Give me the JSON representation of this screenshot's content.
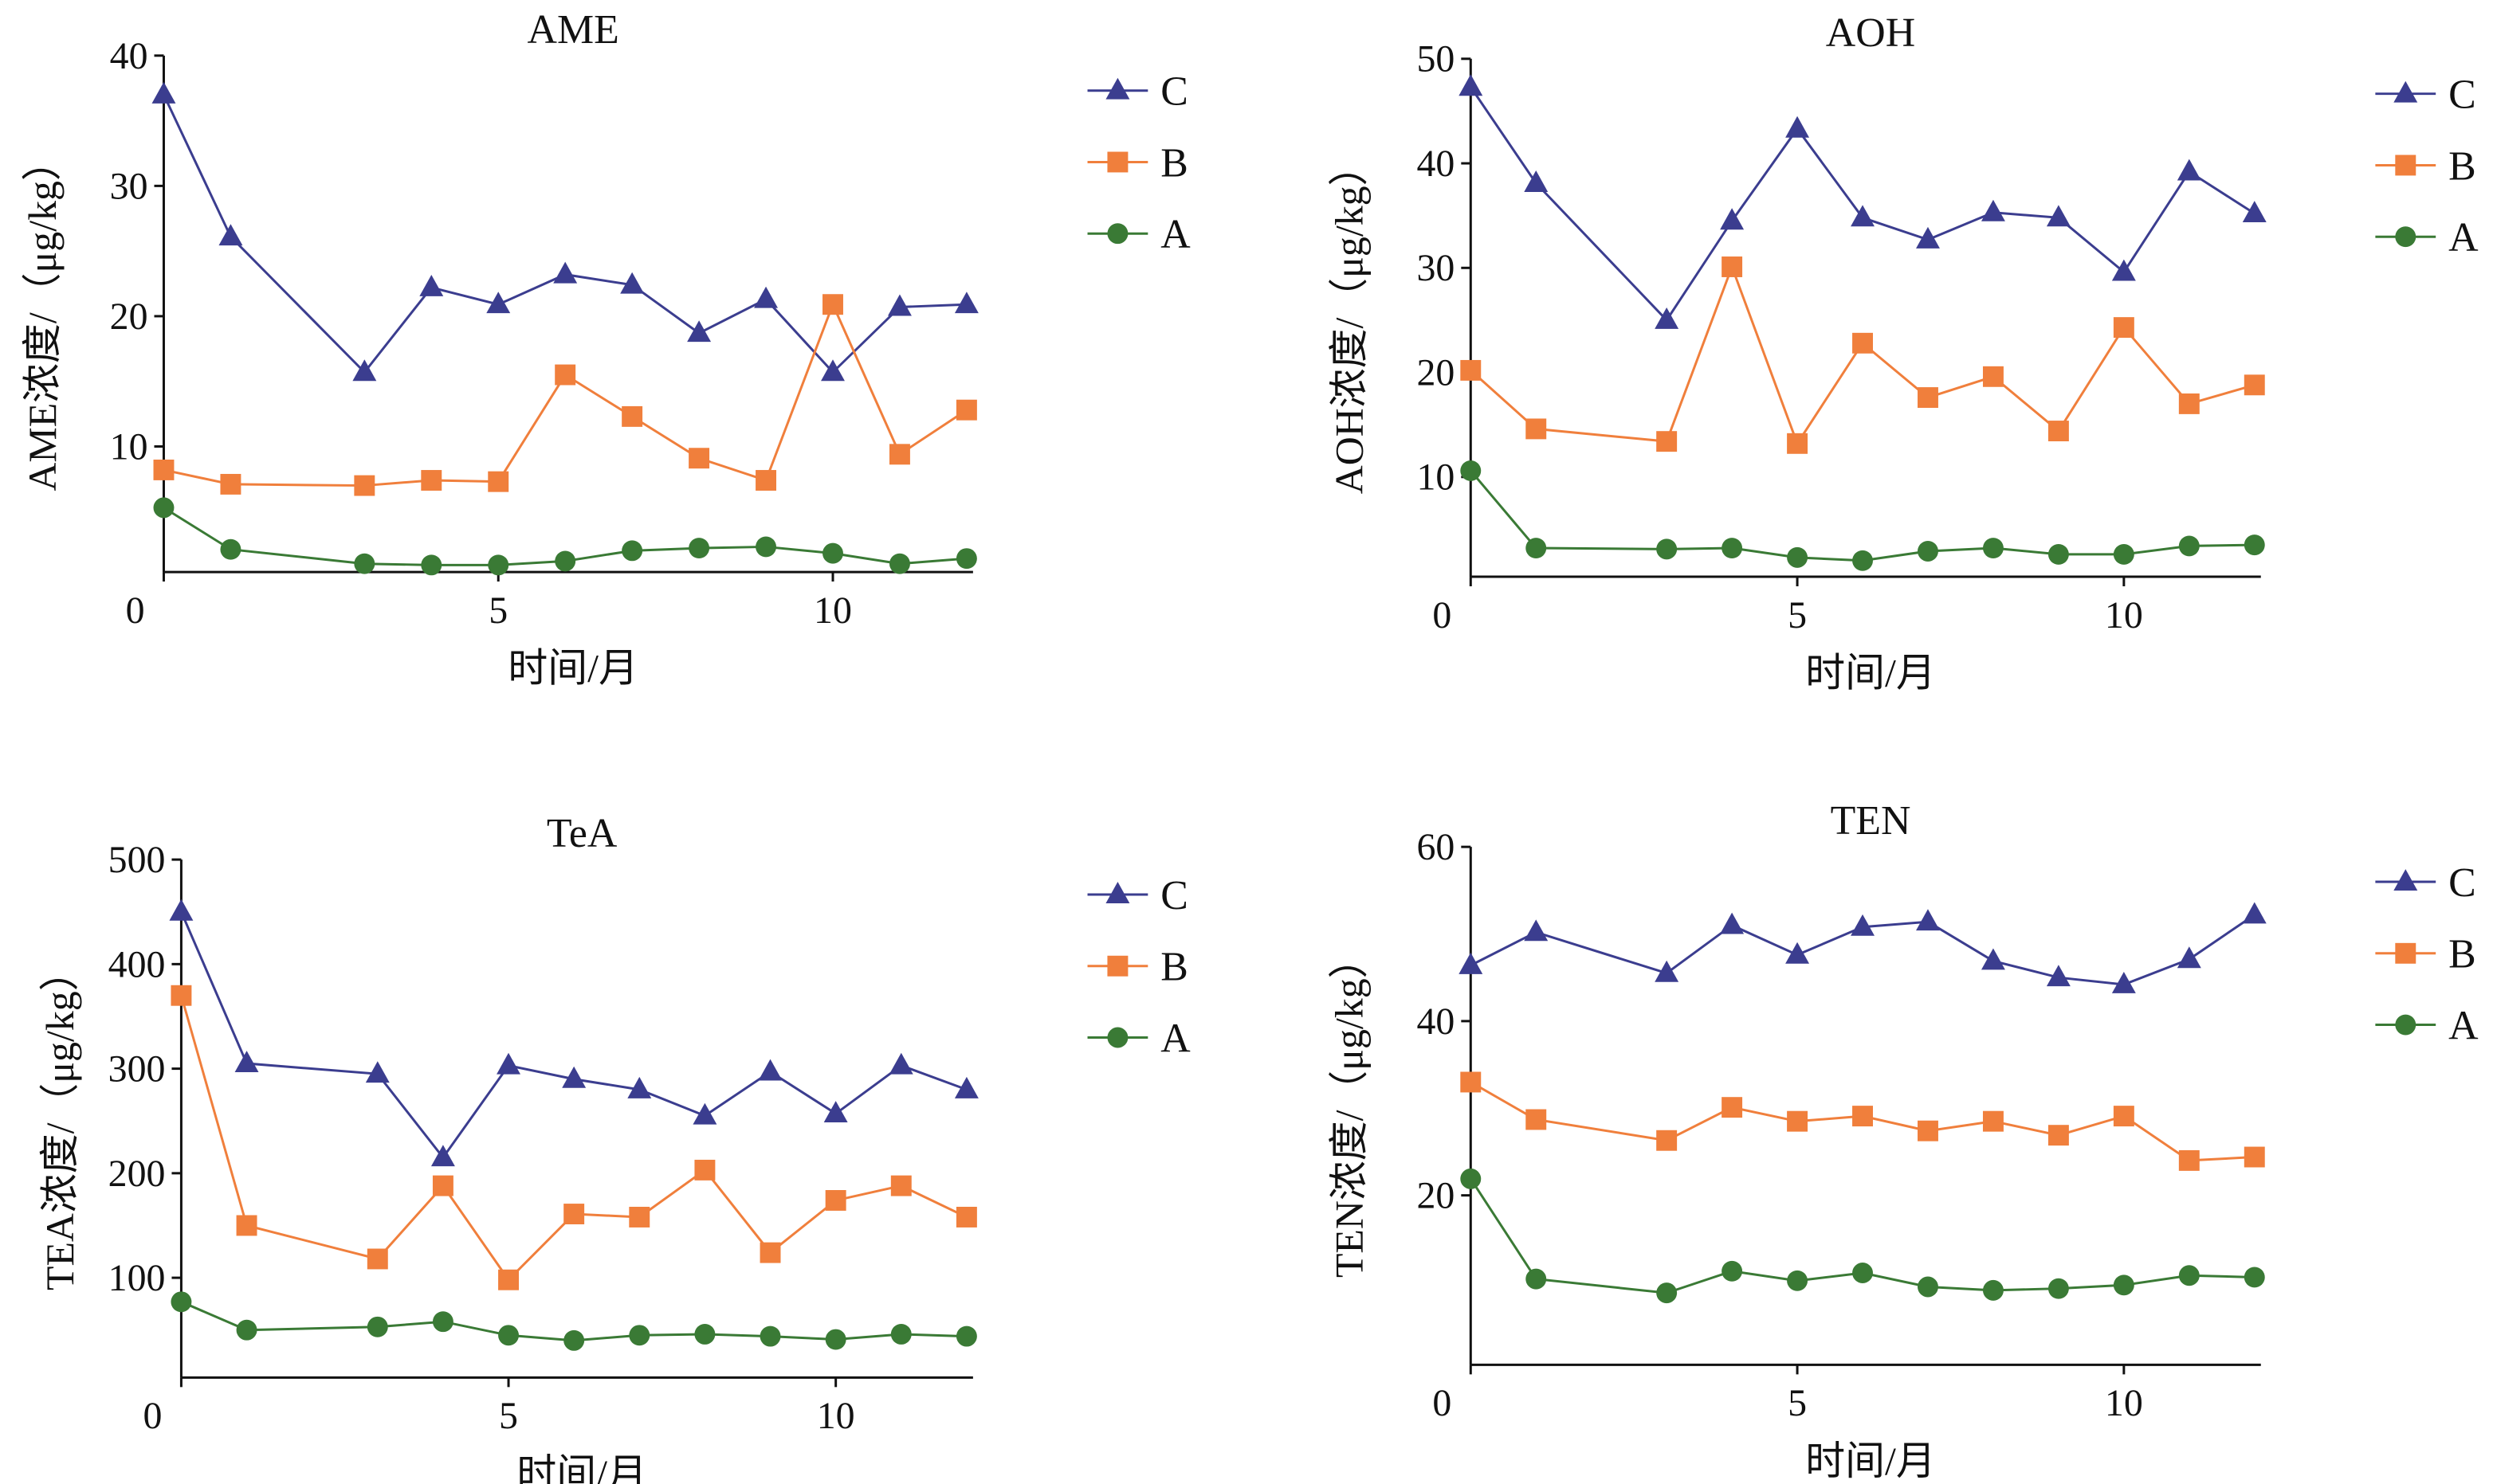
{
  "chart_data": [
    {
      "type": "line",
      "title": "AME",
      "xlabel": "时间/月",
      "ylabel": "AME浓度/（μg/kg）",
      "x": [
        0,
        1,
        3,
        4,
        5,
        6,
        7,
        8,
        9,
        10,
        11,
        12
      ],
      "xlim": [
        0,
        12
      ],
      "xticks": [
        0,
        5,
        10
      ],
      "ylim": [
        0,
        40
      ],
      "yticks": [
        10,
        20,
        30,
        40
      ],
      "series": [
        {
          "name": "C",
          "color": "#3b3d8f",
          "marker": "triangle",
          "values": [
            37.0,
            26.1,
            15.7,
            22.2,
            20.9,
            23.2,
            22.4,
            18.7,
            21.3,
            15.7,
            20.7,
            20.9
          ]
        },
        {
          "name": "B",
          "color": "#f07f3c",
          "marker": "square",
          "values": [
            8.2,
            7.1,
            7.0,
            7.4,
            7.3,
            15.5,
            12.3,
            9.1,
            7.4,
            20.9,
            9.4,
            12.8
          ]
        },
        {
          "name": "A",
          "color": "#3a7a35",
          "marker": "circle",
          "values": [
            5.3,
            2.1,
            1.0,
            0.9,
            0.9,
            1.2,
            2.0,
            2.2,
            2.3,
            1.8,
            1.0,
            1.4
          ]
        }
      ]
    },
    {
      "type": "line",
      "title": "AOH",
      "xlabel": "时间/月",
      "ylabel": "AOH浓度/（μg/kg）",
      "x": [
        0,
        1,
        3,
        4,
        5,
        6,
        7,
        8,
        9,
        10,
        11,
        12
      ],
      "xlim": [
        0,
        12
      ],
      "xticks": [
        0,
        5,
        10
      ],
      "ylim": [
        0,
        50
      ],
      "yticks": [
        10,
        20,
        30,
        40,
        50
      ],
      "series": [
        {
          "name": "C",
          "color": "#3b3d8f",
          "marker": "triangle",
          "values": [
            47.3,
            38.1,
            25.0,
            34.5,
            43.3,
            34.8,
            32.7,
            35.3,
            34.8,
            29.6,
            39.2,
            35.2
          ]
        },
        {
          "name": "B",
          "color": "#f07f3c",
          "marker": "square",
          "values": [
            20.2,
            14.6,
            13.4,
            30.1,
            13.2,
            22.8,
            17.6,
            19.6,
            14.4,
            24.3,
            17.0,
            18.8
          ]
        },
        {
          "name": "A",
          "color": "#3a7a35",
          "marker": "circle",
          "values": [
            10.6,
            3.2,
            3.1,
            3.2,
            2.3,
            2.0,
            2.9,
            3.2,
            2.6,
            2.6,
            3.4,
            3.5
          ]
        }
      ]
    },
    {
      "type": "line",
      "title": "TeA",
      "xlabel": "时间/月",
      "ylabel": "TEA浓度/（μg/kg）",
      "x": [
        0,
        1,
        3,
        4,
        5,
        6,
        7,
        8,
        9,
        10,
        11,
        12
      ],
      "xlim": [
        0,
        12
      ],
      "xticks": [
        0,
        5,
        10
      ],
      "ylim": [
        0,
        500
      ],
      "yticks": [
        100,
        200,
        300,
        400,
        500
      ],
      "series": [
        {
          "name": "C",
          "color": "#3b3d8f",
          "marker": "triangle",
          "values": [
            450,
            305,
            295,
            215,
            303,
            290,
            280,
            255,
            297,
            257,
            303,
            280
          ]
        },
        {
          "name": "B",
          "color": "#f07f3c",
          "marker": "square",
          "values": [
            370,
            150,
            118,
            188,
            98,
            161,
            158,
            203,
            124,
            174,
            188,
            158
          ]
        },
        {
          "name": "A",
          "color": "#3a7a35",
          "marker": "circle",
          "values": [
            77,
            50,
            53,
            58,
            45,
            40,
            45,
            46,
            44,
            41,
            46,
            44
          ]
        }
      ]
    },
    {
      "type": "line",
      "title": "TEN",
      "xlabel": "时间/月",
      "ylabel": "TEN浓度/（μg/kg）",
      "x": [
        0,
        1,
        3,
        4,
        5,
        6,
        7,
        8,
        9,
        10,
        11,
        12
      ],
      "xlim": [
        0,
        12
      ],
      "xticks": [
        0,
        5,
        10
      ],
      "ylim": [
        0,
        60
      ],
      "yticks": [
        20,
        40,
        60
      ],
      "series": [
        {
          "name": "C",
          "color": "#3b3d8f",
          "marker": "triangle",
          "values": [
            46.4,
            50.2,
            45.5,
            51.0,
            47.6,
            50.8,
            51.4,
            46.9,
            45.0,
            44.2,
            47.1,
            52.2
          ]
        },
        {
          "name": "B",
          "color": "#f07f3c",
          "marker": "square",
          "values": [
            33.0,
            28.7,
            26.3,
            30.1,
            28.5,
            29.1,
            27.4,
            28.5,
            26.9,
            29.1,
            24.0,
            24.4
          ]
        },
        {
          "name": "A",
          "color": "#3a7a35",
          "marker": "circle",
          "values": [
            21.9,
            10.4,
            8.8,
            11.3,
            10.2,
            11.1,
            9.5,
            9.1,
            9.3,
            9.7,
            10.8,
            10.6
          ]
        }
      ]
    }
  ]
}
